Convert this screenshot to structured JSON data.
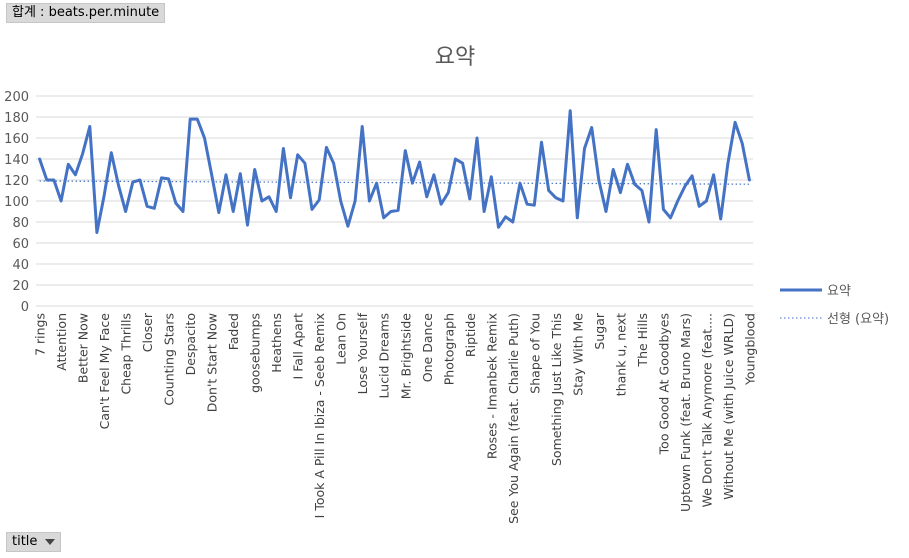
{
  "pivot": {
    "value_field_label": "합계 : beats.per.minute",
    "axis_field_label": "title"
  },
  "colors": {
    "series": "#4472c4",
    "grid": "#d9d9d9",
    "text": "#595959"
  },
  "icons": {
    "axis_dropdown": "chevron-down-icon"
  },
  "chart_data": {
    "type": "line",
    "title": "요약",
    "xlabel": "",
    "ylabel": "",
    "ylim": [
      0,
      200
    ],
    "yticks": [
      0,
      20,
      40,
      60,
      80,
      100,
      120,
      140,
      160,
      180,
      200
    ],
    "grid": true,
    "legend_position": "right",
    "x_tick_labels": [
      "7 rings",
      "Attention",
      "Better Now",
      "Can't Feel My Face",
      "Cheap Thrills",
      "Closer",
      "Counting Stars",
      "Despacito",
      "Don't Start Now",
      "Faded",
      "goosebumps",
      "Heathens",
      "I Fall Apart",
      "I Took A Pill In Ibiza - Seeb Remix",
      "Lean On",
      "Lose Yourself",
      "Lucid Dreams",
      "Mr. Brightside",
      "One Dance",
      "Photograph",
      "Riptide",
      "Roses - Imanbek Remix",
      "See You Again (feat. Charlie Puth)",
      "Shape of You",
      "Something Just Like This",
      "Stay With Me",
      "Sugar",
      "thank u, next",
      "The Hills",
      "Too Good At Goodbyes",
      "Uptown Funk (feat. Bruno Mars)",
      "We Don't Talk Anymore (feat....",
      "Without Me (with Juice WRLD)",
      "Youngblood"
    ],
    "series": [
      {
        "name": "요약",
        "values": [
          140,
          120,
          120,
          100,
          135,
          125,
          145,
          171,
          70,
          105,
          146,
          115,
          90,
          118,
          120,
          95,
          93,
          122,
          121,
          98,
          90,
          178,
          178,
          160,
          125,
          89,
          125,
          90,
          126,
          77,
          130,
          100,
          104,
          90,
          150,
          103,
          144,
          136,
          92,
          101,
          151,
          136,
          100,
          76,
          100,
          171,
          100,
          117,
          84,
          90,
          91,
          148,
          117,
          137,
          104,
          125,
          97,
          108,
          140,
          136,
          102,
          160,
          90,
          123,
          75,
          85,
          80,
          117,
          97,
          96,
          156,
          110,
          103,
          100,
          186,
          84,
          150,
          170,
          120,
          90,
          130,
          108,
          135,
          116,
          110,
          80,
          168,
          92,
          84,
          100,
          114,
          124,
          95,
          100,
          125,
          83,
          136,
          175,
          155,
          120
        ]
      },
      {
        "name": "선형 (요약)",
        "trendline": "linear",
        "start": 119,
        "end": 116
      }
    ]
  }
}
